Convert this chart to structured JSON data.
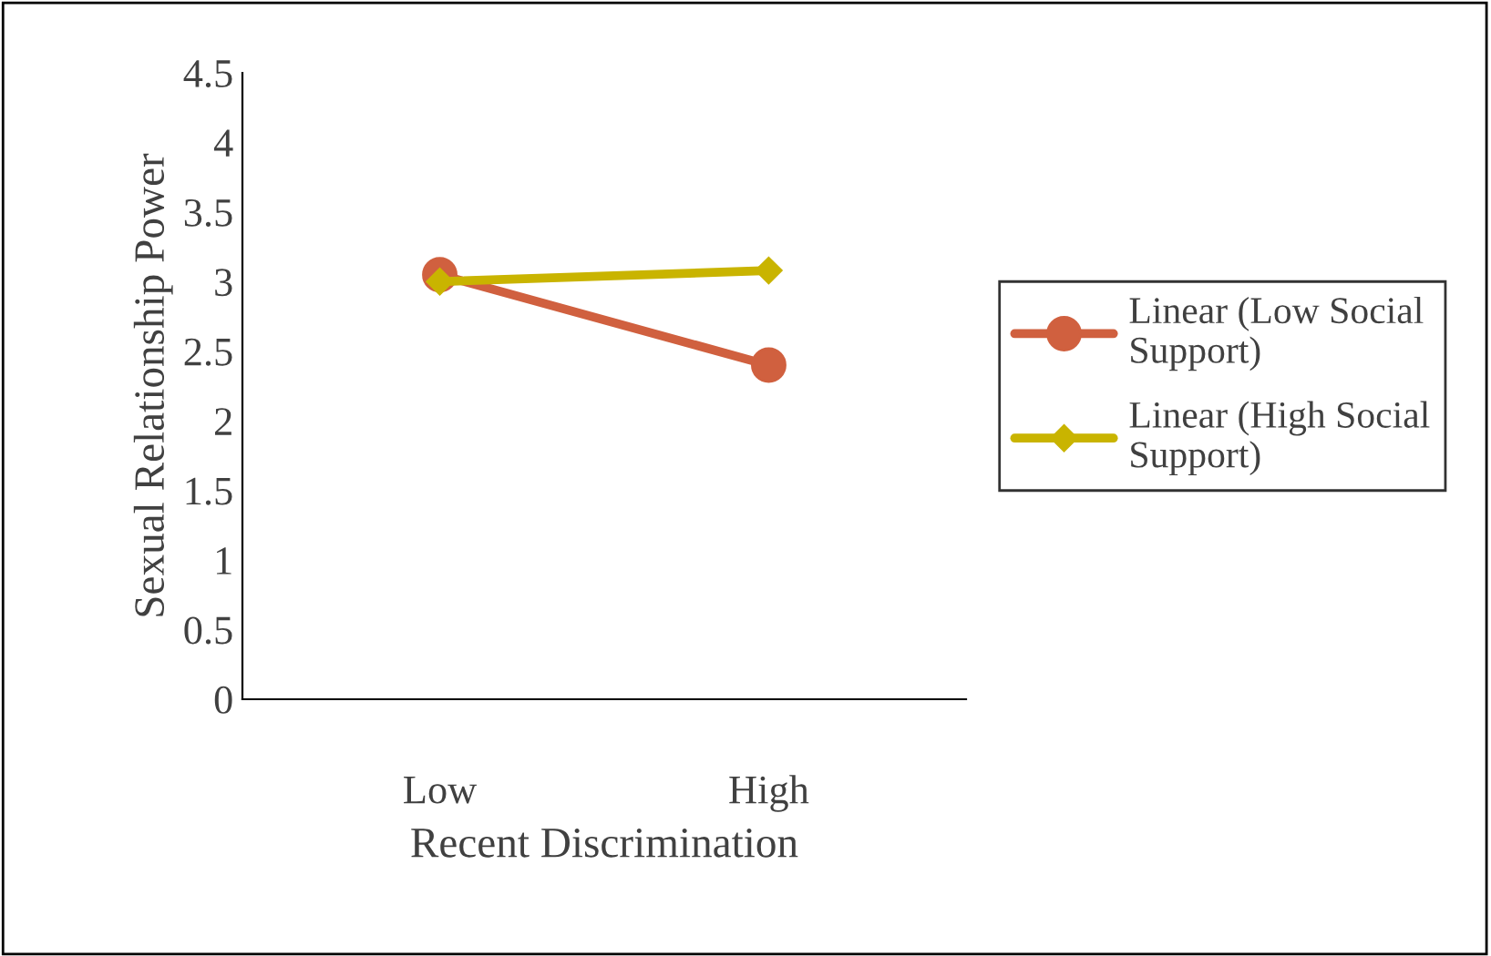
{
  "chart_data": {
    "type": "line",
    "xlabel": "Recent Discrimination",
    "ylabel": "Sexual Relationship Power",
    "categories": [
      "Low",
      "High"
    ],
    "ylim": [
      0,
      4.5
    ],
    "yticks": [
      0,
      0.5,
      1,
      1.5,
      2,
      2.5,
      3,
      3.5,
      4,
      4.5
    ],
    "series": [
      {
        "name": "Linear (Low Social Support)",
        "color": "#d0603f",
        "values": [
          3.05,
          2.4
        ],
        "marker": "circle"
      },
      {
        "name": "Linear (High Social Support)",
        "color": "#c9b400",
        "values": [
          3.0,
          3.08
        ],
        "marker": "diamond"
      }
    ],
    "legend": "right",
    "grid": false,
    "line_style": "solid"
  }
}
